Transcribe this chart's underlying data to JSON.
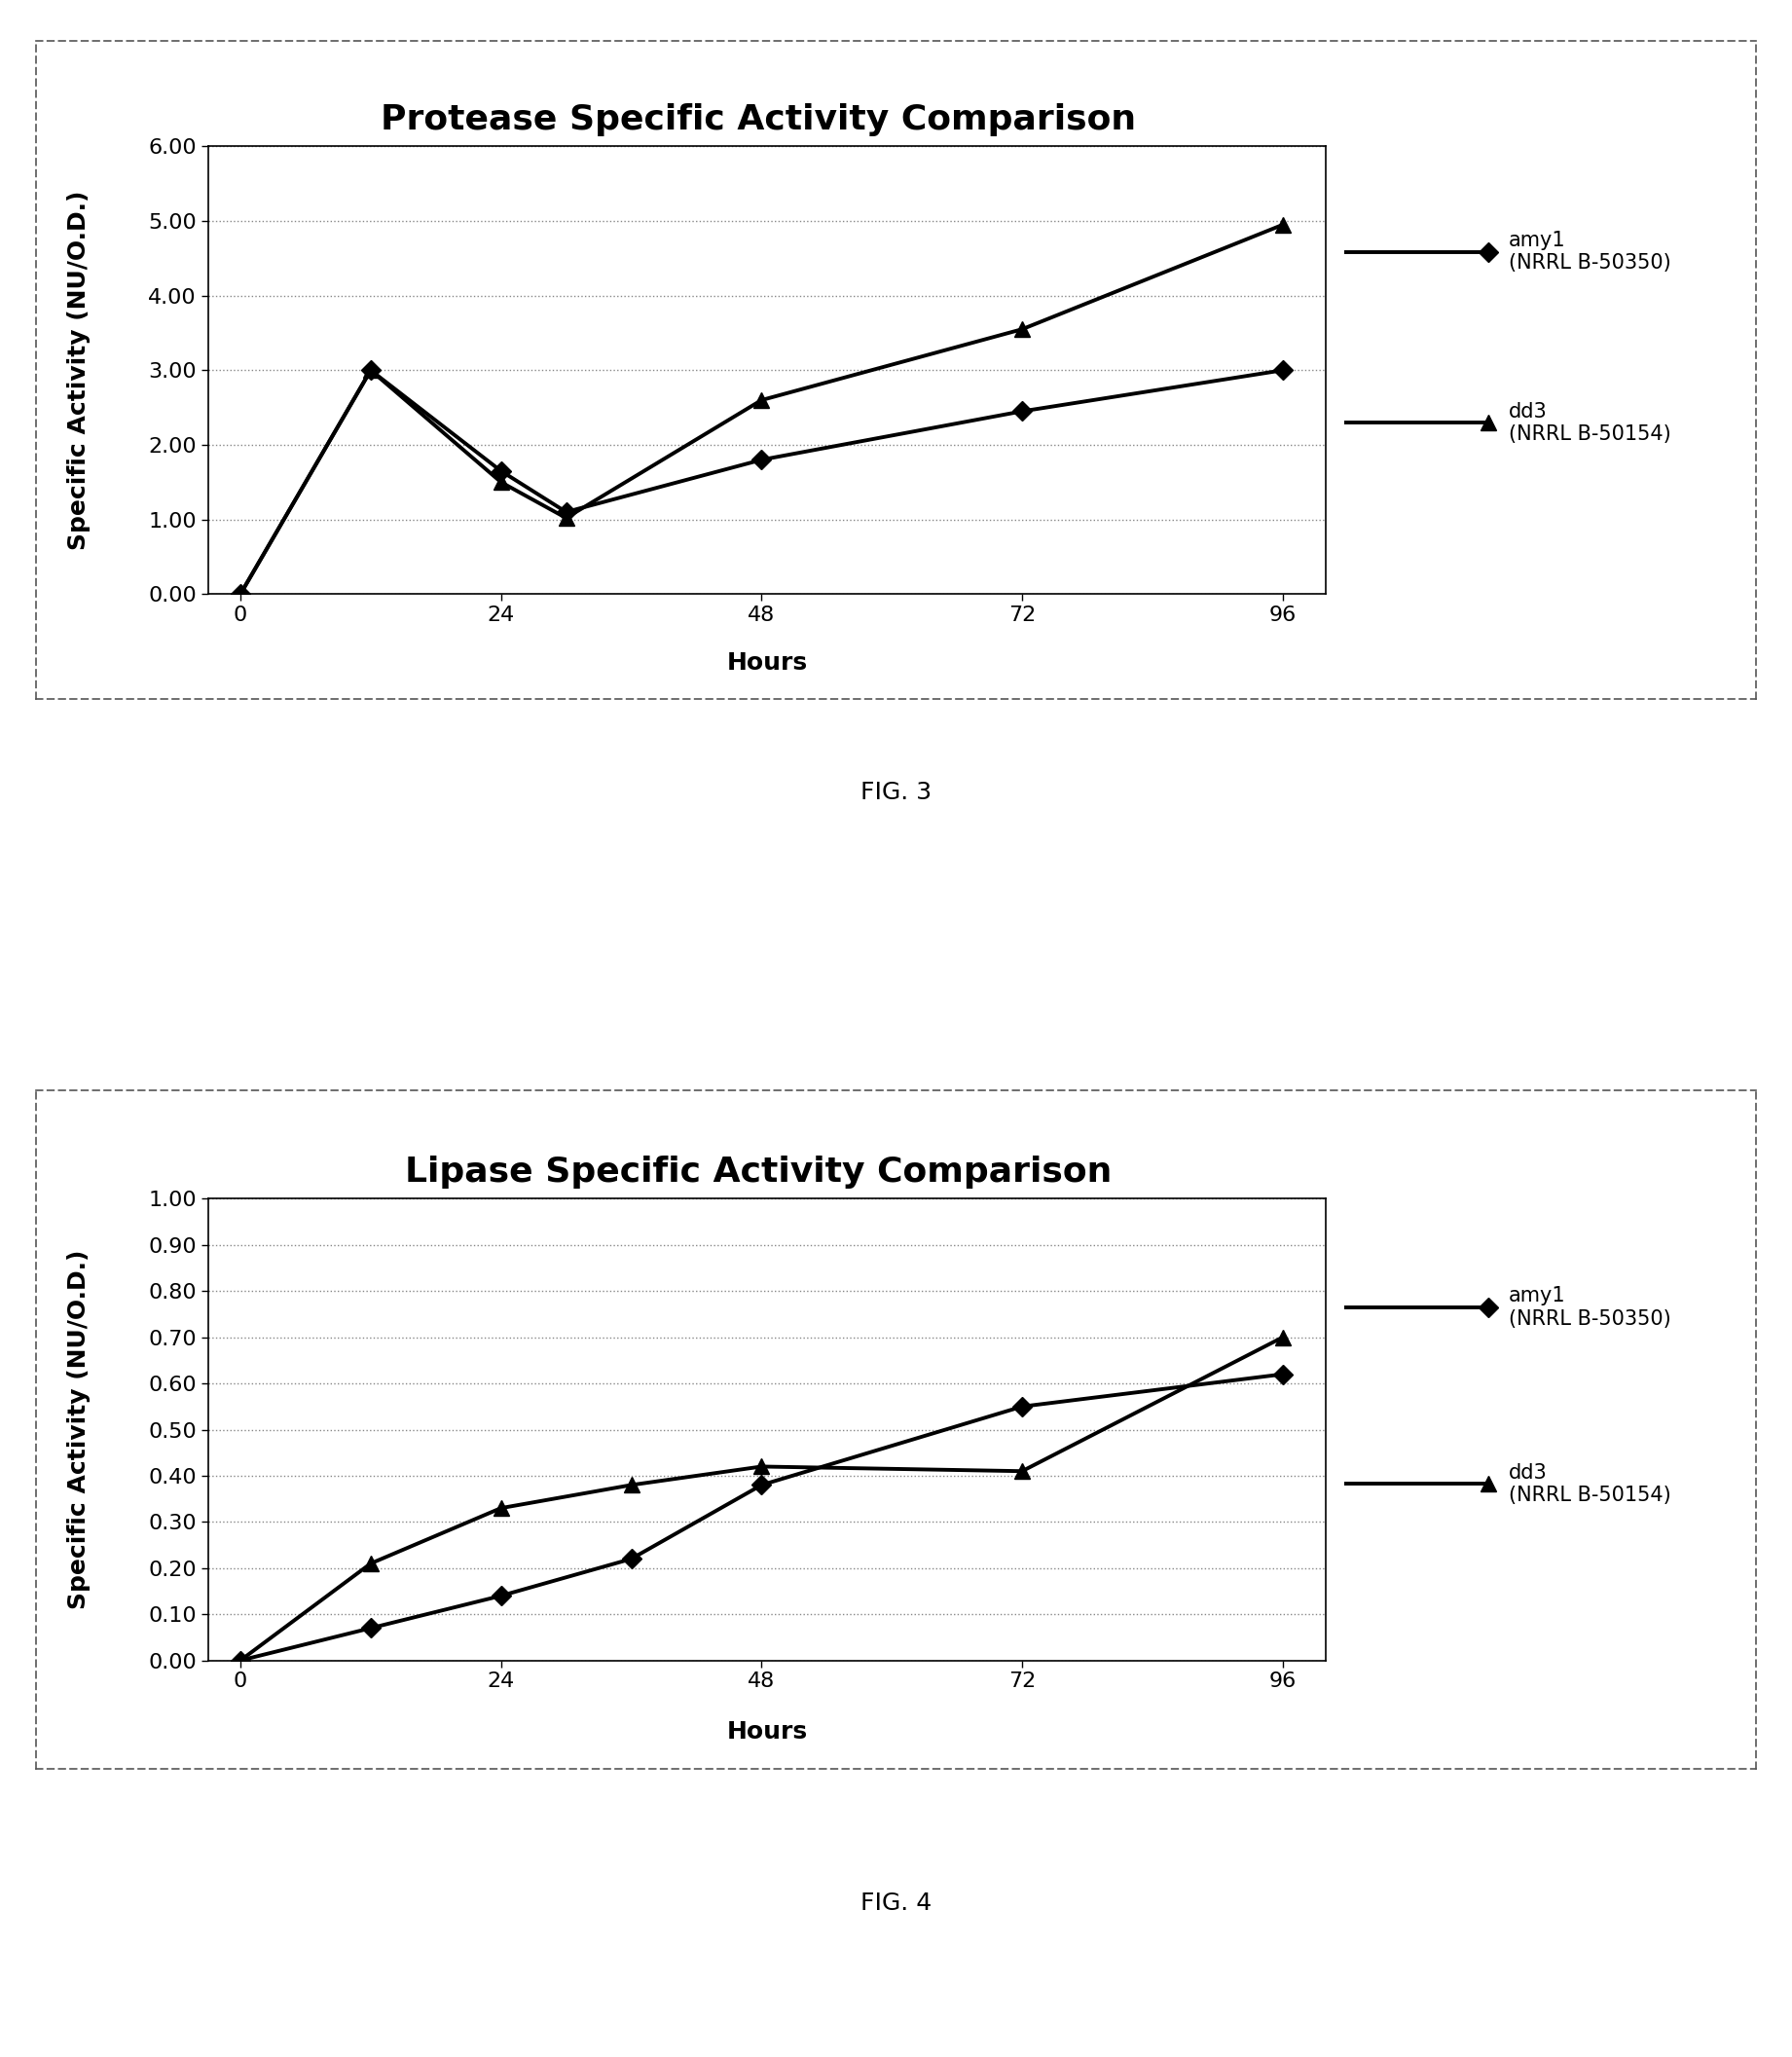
{
  "fig3": {
    "title": "Protease Specific Activity Comparison",
    "xlabel": "Hours",
    "ylabel": "Specific Activity (NU/O.D.)",
    "x_ticks": [
      0,
      24,
      48,
      72,
      96
    ],
    "ylim": [
      0.0,
      6.0
    ],
    "yticks": [
      0.0,
      1.0,
      2.0,
      3.0,
      4.0,
      5.0,
      6.0
    ],
    "xlim": [
      -3,
      100
    ],
    "amy1_x": [
      0,
      12,
      24,
      30,
      48,
      72,
      96
    ],
    "amy1_y": [
      0.0,
      3.0,
      1.65,
      1.1,
      1.8,
      2.45,
      3.0
    ],
    "dd3_x": [
      0,
      12,
      24,
      30,
      48,
      72,
      96
    ],
    "dd3_y": [
      0.0,
      3.0,
      1.5,
      1.02,
      2.6,
      3.55,
      4.95
    ],
    "legend1": "amy1\n(NRRL B-50350)",
    "legend2": "dd3\n(NRRL B-50154)",
    "fig_label": "FIG. 3"
  },
  "fig4": {
    "title": "Lipase Specific Activity Comparison",
    "xlabel": "Hours",
    "ylabel": "Specific Activity (NU/O.D.)",
    "x_ticks": [
      0,
      24,
      48,
      72,
      96
    ],
    "ylim": [
      0.0,
      1.0
    ],
    "yticks": [
      0.0,
      0.1,
      0.2,
      0.3,
      0.4,
      0.5,
      0.6,
      0.7,
      0.8,
      0.9,
      1.0
    ],
    "xlim": [
      -3,
      100
    ],
    "amy1_x": [
      0,
      12,
      24,
      36,
      48,
      72,
      96
    ],
    "amy1_y": [
      0.0,
      0.07,
      0.14,
      0.22,
      0.38,
      0.55,
      0.62
    ],
    "dd3_x": [
      0,
      12,
      24,
      36,
      48,
      72,
      96
    ],
    "dd3_y": [
      0.0,
      0.21,
      0.33,
      0.38,
      0.42,
      0.41,
      0.7
    ],
    "legend1": "amy1\n(NRRL B-50350)",
    "legend2": "dd3\n(NRRL B-50154)",
    "fig_label": "FIG. 4"
  },
  "line_color": "#000000",
  "bg_color": "#ffffff",
  "title_fontsize": 26,
  "label_fontsize": 18,
  "tick_fontsize": 16,
  "legend_fontsize": 15,
  "fig_label_fontsize": 18,
  "linewidth": 2.8,
  "markersize": 10
}
